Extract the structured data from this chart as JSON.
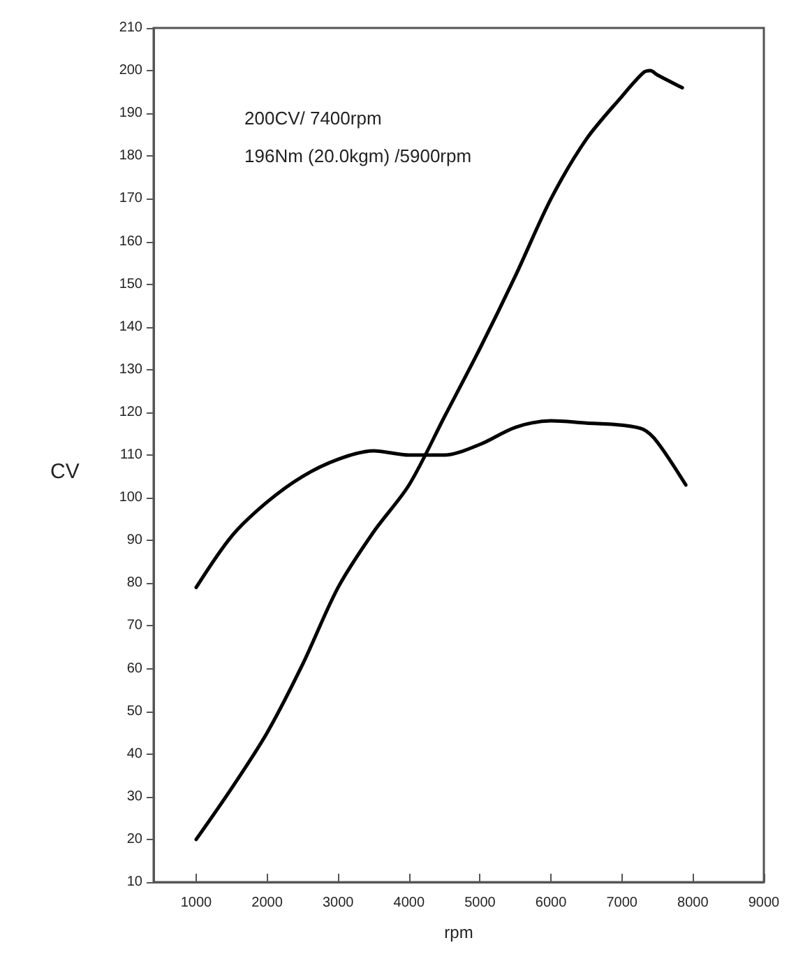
{
  "chart_data": {
    "type": "line",
    "xlabel": "rpm",
    "ylabel": "CV",
    "annotations": [
      "200CV/ 7400rpm",
      "196Nm (20.0kgm) /5900rpm"
    ],
    "series": [
      {
        "color": "#000000",
        "x": [
          1000,
          1500,
          2000,
          2500,
          3000,
          3500,
          4000,
          4500,
          5000,
          5500,
          6000,
          6500,
          7000,
          7300,
          7400,
          7500,
          7850
        ],
        "values": [
          20,
          32,
          45,
          61,
          79,
          92,
          103,
          119,
          135,
          152,
          170,
          184,
          194,
          199.5,
          200,
          199,
          196
        ]
      },
      {
        "color": "#000000",
        "x": [
          1000,
          1500,
          2000,
          2500,
          3000,
          3500,
          4000,
          4500,
          5000,
          5500,
          6000,
          6500,
          7000,
          7300,
          7500,
          7900
        ],
        "values": [
          79,
          91,
          99,
          105,
          109,
          111,
          110,
          110,
          112.5,
          116.5,
          118,
          117.5,
          117,
          116,
          113,
          103
        ]
      }
    ],
    "xlim": [
      400,
      9000
    ],
    "xticks": [
      1000,
      2000,
      3000,
      4000,
      5000,
      6000,
      7000,
      8000,
      9000
    ],
    "ylim": [
      10,
      210
    ],
    "yticks": [
      10,
      20,
      30,
      40,
      50,
      60,
      70,
      80,
      90,
      100,
      110,
      120,
      130,
      140,
      150,
      160,
      170,
      180,
      190,
      200,
      210
    ],
    "grid": false,
    "marker": "none",
    "line_style": "solid"
  }
}
